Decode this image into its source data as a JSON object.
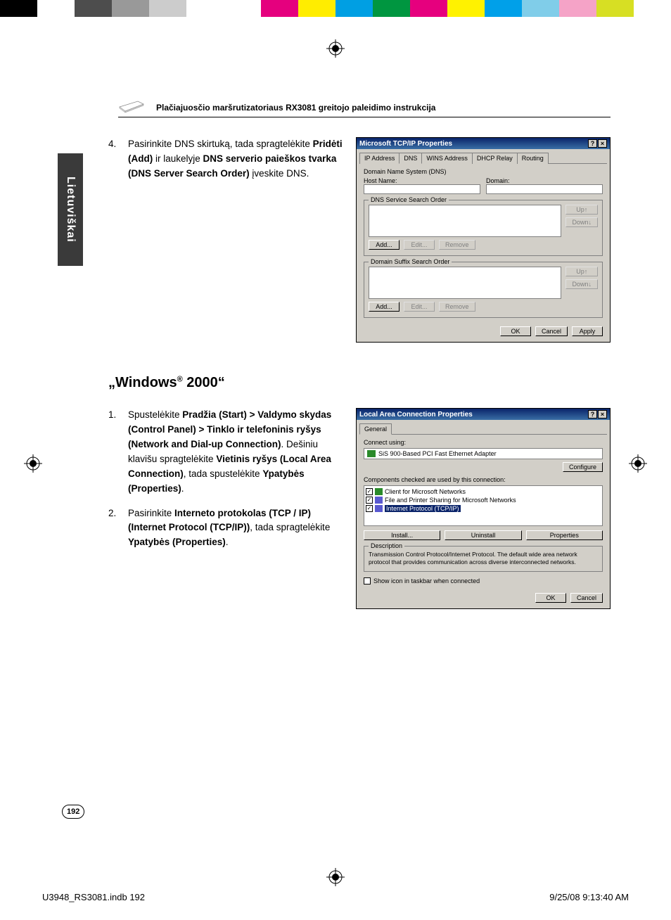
{
  "color_bar": [
    "#000000",
    "#ffffff",
    "#4d4d4d",
    "#999999",
    "#cccccc",
    "#ffffff",
    "#ffffff",
    "#e5007e",
    "#ffed00",
    "#009fe3",
    "#009640",
    "#e6007e",
    "#fff200",
    "#00a0e9",
    "#80cde9",
    "#f5a3c7",
    "#d7df23",
    "#ffffff"
  ],
  "header_title": "Plačiajuosčio maršrutizatoriaus RX3081 greitojo paleidimo instrukcija",
  "lang_tab": "Lietuviškai",
  "step4": {
    "num": "4.",
    "pre": "Pasirinkite DNS skirtuką, tada spragtelėkite ",
    "b1": "Pridėti (Add)",
    "mid1": " ir laukelyje ",
    "b2": "DNS serverio paieškos tvarka (DNS Server Search Order)",
    "post": " įveskite DNS."
  },
  "section_heading_pre": "„Windows",
  "section_heading_sup": "®",
  "section_heading_post": " 2000“",
  "step1": {
    "num": "1.",
    "pre": "Spustelėkite ",
    "b1": "Pradžia (Start) > Valdymo skydas (Control Panel) > Tinklo ir telefoninis ryšys (Network and Dial-up Connection)",
    "mid1": ". Dešiniu klavišu spragtelėkite ",
    "b2": "Vietinis ryšys (Local Area Connection)",
    "mid2": ", tada spustelėkite ",
    "b3": "Ypatybės (Properties)",
    "post": "."
  },
  "step2": {
    "num": "2.",
    "pre": "Pasirinkite ",
    "b1": "Interneto protokolas (TCP / IP) (Internet Protocol (TCP/IP))",
    "mid1": ", tada spragtelėkite ",
    "b2": "Ypatybės (Properties)",
    "post": "."
  },
  "dlg1": {
    "title": "Microsoft TCP/IP Properties",
    "help_btn": "?",
    "close_btn": "×",
    "tabs": [
      "IP Address",
      "DNS",
      "WINS Address",
      "DHCP Relay",
      "Routing"
    ],
    "grp1_title": "Domain Name System (DNS)",
    "host_label": "Host Name:",
    "domain_label": "Domain:",
    "grp2_title": "DNS Service Search Order",
    "grp3_title": "Domain Suffix Search Order",
    "btn_up": "Up↑",
    "btn_down": "Down↓",
    "btn_add": "Add...",
    "btn_edit": "Edit...",
    "btn_remove": "Remove",
    "btn_ok": "OK",
    "btn_cancel": "Cancel",
    "btn_apply": "Apply"
  },
  "dlg2": {
    "title": "Local Area Connection Properties",
    "help_btn": "?",
    "close_btn": "×",
    "tab": "General",
    "connect_using_label": "Connect using:",
    "adapter": "SiS 900-Based PCI Fast Ethernet Adapter",
    "btn_configure": "Configure",
    "components_label": "Components checked are used by this connection:",
    "comp_client": "Client for Microsoft Networks",
    "comp_share": "File and Printer Sharing for Microsoft Networks",
    "comp_tcp": "Internet Protocol (TCP/IP)",
    "btn_install": "Install...",
    "btn_uninstall": "Uninstall",
    "btn_properties": "Properties",
    "desc_title": "Description",
    "desc_text": "Transmission Control Protocol/Internet Protocol. The default wide area network protocol that provides communication across diverse interconnected networks.",
    "show_icon": "Show icon in taskbar when connected",
    "btn_ok": "OK",
    "btn_cancel": "Cancel"
  },
  "page_number": "192",
  "footer_left": "U3948_RS3081.indb   192",
  "footer_right": "9/25/08   9:13:40 AM"
}
